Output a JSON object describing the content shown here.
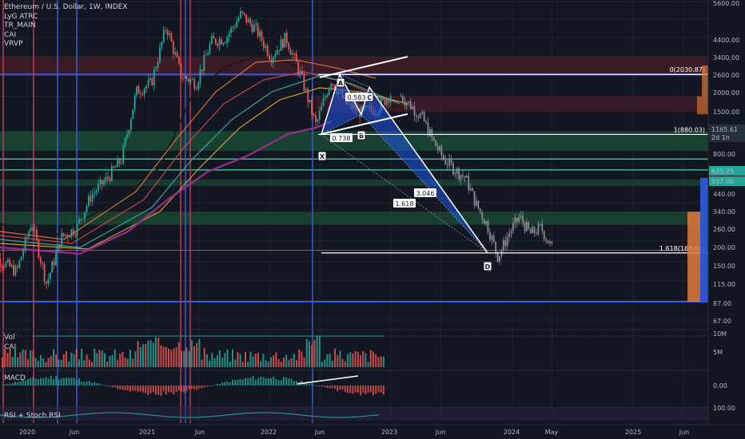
{
  "header": {
    "title": "Ethereum / U.S. Dollar, 1W, INDEX",
    "indicators": [
      "LyG ATRC",
      "TR_MAIN",
      "CAI",
      "VRVP"
    ]
  },
  "panes": {
    "volume": {
      "labels": [
        "Vol",
        "CAI"
      ],
      "axis": [
        "10M",
        "5M"
      ]
    },
    "macd": {
      "label": "MACD",
      "axis": "0.00"
    },
    "rsi": {
      "label": "RSI + Stoch RSI",
      "axis": "100.00"
    }
  },
  "colors": {
    "background": "#131722",
    "up": "#26a69a",
    "down": "#ef5350",
    "pattern_fill": "#1e53e5",
    "green_zone": "#1b5e3b",
    "red_zone": "#5c1f28",
    "ma_pink": "#9c2f8f",
    "grid": "#1f2230"
  },
  "chart_data": {
    "type": "candlestick",
    "title": "Ethereum / U.S. Dollar, 1W, INDEX",
    "y_scale": "log",
    "y_axis_ticks": [
      "5600.00",
      "4400.00",
      "3400.00",
      "2600.00",
      "2000.00",
      "1500.00",
      "1165.61",
      "800.00",
      "625.25",
      "537.00",
      "440.00",
      "340.00",
      "260.00",
      "200.00",
      "150.00",
      "115.00",
      "87.00",
      "67.00"
    ],
    "x_axis_ticks": [
      "2020",
      "Jun",
      "2021",
      "Jun",
      "2022",
      "Jun",
      "2023",
      "Jun",
      "2024",
      "May",
      "2025",
      "Jun"
    ],
    "current_price": {
      "value": "1165.61",
      "countdown": "2d 1h"
    },
    "price_tags": [
      "625.25",
      "537.00"
    ],
    "fib_levels": [
      {
        "label": "0(2030.87)",
        "value": 2030.87
      },
      {
        "label": "1(880.03)",
        "value": 880.03
      },
      {
        "label": "1.618(168.81)",
        "value": 168.81
      }
    ],
    "harmonic_pattern": {
      "points": [
        {
          "label": "X",
          "value": 880
        },
        {
          "label": "A",
          "value": 2030
        },
        {
          "label": "B",
          "value": 1160
        },
        {
          "label": "C",
          "value": 1700
        },
        {
          "label": "D",
          "value": 169
        }
      ],
      "ratios": [
        "0.583",
        "0.738",
        "3.046",
        "1.618"
      ]
    },
    "price_path": [
      {
        "x": "2019-09",
        "y": 175
      },
      {
        "x": "2019-11",
        "y": 150
      },
      {
        "x": "2020-01",
        "y": 130
      },
      {
        "x": "2020-02",
        "y": 260
      },
      {
        "x": "2020-03",
        "y": 110
      },
      {
        "x": "2020-05",
        "y": 210
      },
      {
        "x": "2020-07",
        "y": 240
      },
      {
        "x": "2020-09",
        "y": 380
      },
      {
        "x": "2020-11",
        "y": 470
      },
      {
        "x": "2020-12",
        "y": 620
      },
      {
        "x": "2021-02",
        "y": 1600
      },
      {
        "x": "2021-03",
        "y": 1800
      },
      {
        "x": "2021-05",
        "y": 4000
      },
      {
        "x": "2021-06",
        "y": 2000
      },
      {
        "x": "2021-07",
        "y": 1800
      },
      {
        "x": "2021-08",
        "y": 3200
      },
      {
        "x": "2021-09",
        "y": 3400
      },
      {
        "x": "2021-11",
        "y": 4700
      },
      {
        "x": "2021-12",
        "y": 3800
      },
      {
        "x": "2022-01",
        "y": 2600
      },
      {
        "x": "2022-03",
        "y": 3400
      },
      {
        "x": "2022-05",
        "y": 2000
      },
      {
        "x": "2022-06",
        "y": 1000
      },
      {
        "x": "2022-08",
        "y": 1900
      },
      {
        "x": "2022-09",
        "y": 1350
      },
      {
        "x": "2022-11",
        "y": 1200
      },
      {
        "x": "2022-12",
        "y": 1250
      },
      {
        "x": "2023-01",
        "y": 1550
      }
    ],
    "projection_path": [
      {
        "x": "2023-02",
        "y": 1500
      },
      {
        "x": "2023-03",
        "y": 1300
      },
      {
        "x": "2023-05",
        "y": 1100
      },
      {
        "x": "2023-06",
        "y": 800
      },
      {
        "x": "2023-07",
        "y": 620
      },
      {
        "x": "2023-08",
        "y": 540
      },
      {
        "x": "2023-09",
        "y": 480
      },
      {
        "x": "2023-10",
        "y": 330
      },
      {
        "x": "2023-11",
        "y": 250
      },
      {
        "x": "2023-12",
        "y": 160
      },
      {
        "x": "2024-01",
        "y": 220
      },
      {
        "x": "2024-02",
        "y": 280
      },
      {
        "x": "2024-03",
        "y": 220
      },
      {
        "x": "2024-04",
        "y": 240
      },
      {
        "x": "2024-05",
        "y": 180
      }
    ],
    "legend": "top-left",
    "grid": true
  }
}
